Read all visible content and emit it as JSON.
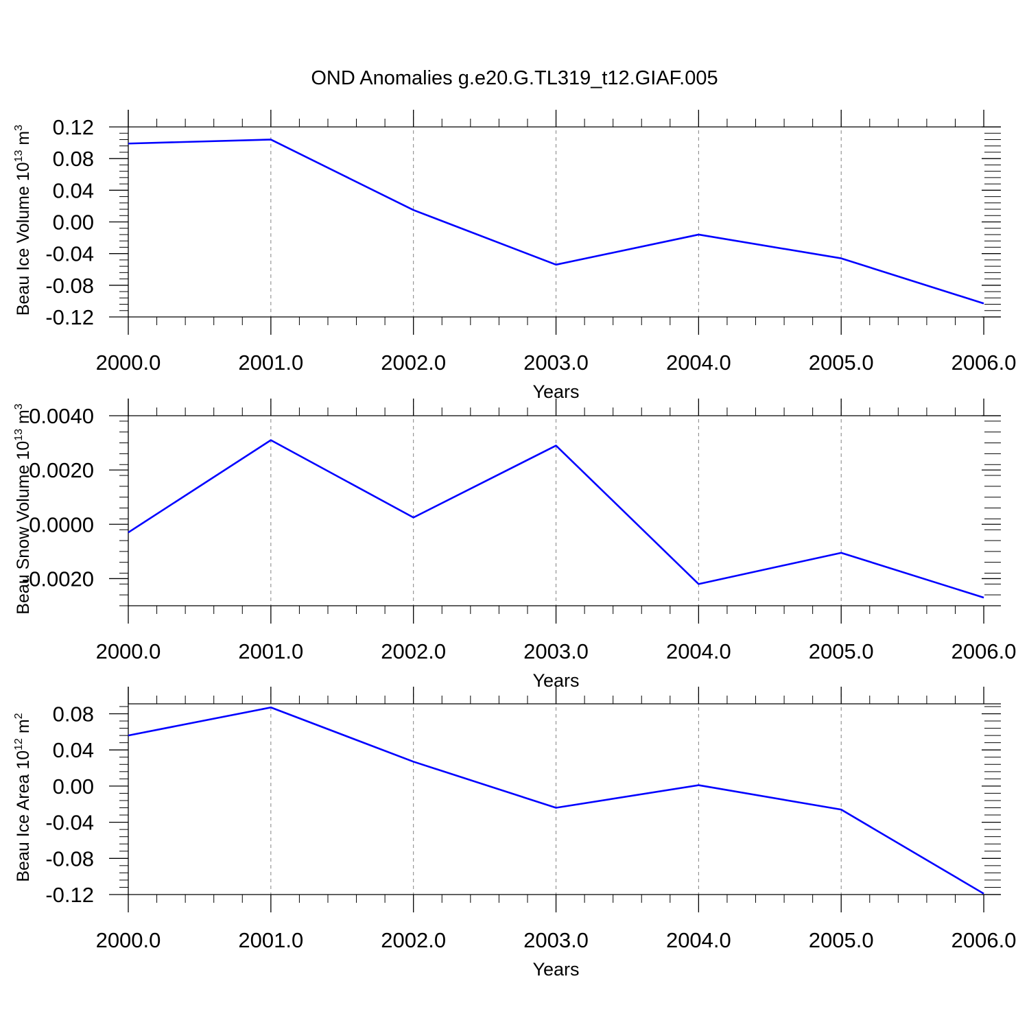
{
  "title": "OND Anomalies g.e20.G.TL319_t12.GIAF.005",
  "colors": {
    "line": "#0000ff",
    "axes": "#000000",
    "grid": "#808080"
  },
  "chart_data": [
    {
      "type": "line",
      "xlabel": "Years",
      "ylabel": {
        "text": "Beau Ice Volume 10",
        "sup": "13",
        "unit": " m",
        "unit_sup": "3"
      },
      "x": [
        2000,
        2001,
        2002,
        2003,
        2004,
        2005,
        2006
      ],
      "xlim": [
        2000,
        2006.12
      ],
      "xticks": [
        "2000.0",
        "2001.0",
        "2002.0",
        "2003.0",
        "2004.0",
        "2005.0",
        "2006.0"
      ],
      "ylim": [
        -0.12,
        0.12
      ],
      "yticks": [
        "0.12",
        "0.08",
        "0.04",
        "0.00",
        "-0.04",
        "-0.08",
        "-0.12"
      ],
      "series": [
        {
          "values": [
            0.099,
            0.104,
            0.015,
            -0.054,
            -0.016,
            -0.046,
            -0.103
          ]
        }
      ],
      "grid": "vertical dashed at major x ticks"
    },
    {
      "type": "line",
      "xlabel": "Years",
      "ylabel": {
        "text": "Beau Snow Volume 10",
        "sup": "13",
        "unit": " m",
        "unit_sup": "3"
      },
      "x": [
        2000,
        2001,
        2002,
        2003,
        2004,
        2005,
        2006
      ],
      "xlim": [
        2000,
        2006.12
      ],
      "xticks": [
        "2000.0",
        "2001.0",
        "2002.0",
        "2003.0",
        "2004.0",
        "2005.0",
        "2006.0"
      ],
      "ylim": [
        -0.003,
        0.004
      ],
      "yticks": [
        "0.0040",
        "0.0020",
        "0.0000",
        "-0.0020"
      ],
      "series": [
        {
          "values": [
            -0.0003,
            0.0031,
            0.00025,
            0.0029,
            -0.0022,
            -0.00105,
            -0.0027
          ]
        }
      ],
      "grid": "vertical dashed at major x ticks"
    },
    {
      "type": "line",
      "xlabel": "Years",
      "ylabel": {
        "text": "Beau Ice Area 10",
        "sup": "12",
        "unit": " m",
        "unit_sup": "2"
      },
      "x": [
        2000,
        2001,
        2002,
        2003,
        2004,
        2005,
        2006
      ],
      "xlim": [
        2000,
        2006.12
      ],
      "xticks": [
        "2000.0",
        "2001.0",
        "2002.0",
        "2003.0",
        "2004.0",
        "2005.0",
        "2006.0"
      ],
      "ylim": [
        -0.12,
        0.091
      ],
      "yticks": [
        "0.08",
        "0.04",
        "0.00",
        "-0.04",
        "-0.08",
        "-0.12"
      ],
      "series": [
        {
          "values": [
            0.056,
            0.087,
            0.027,
            -0.024,
            0.001,
            -0.026,
            -0.119
          ]
        }
      ],
      "grid": "vertical dashed at major x ticks"
    }
  ]
}
